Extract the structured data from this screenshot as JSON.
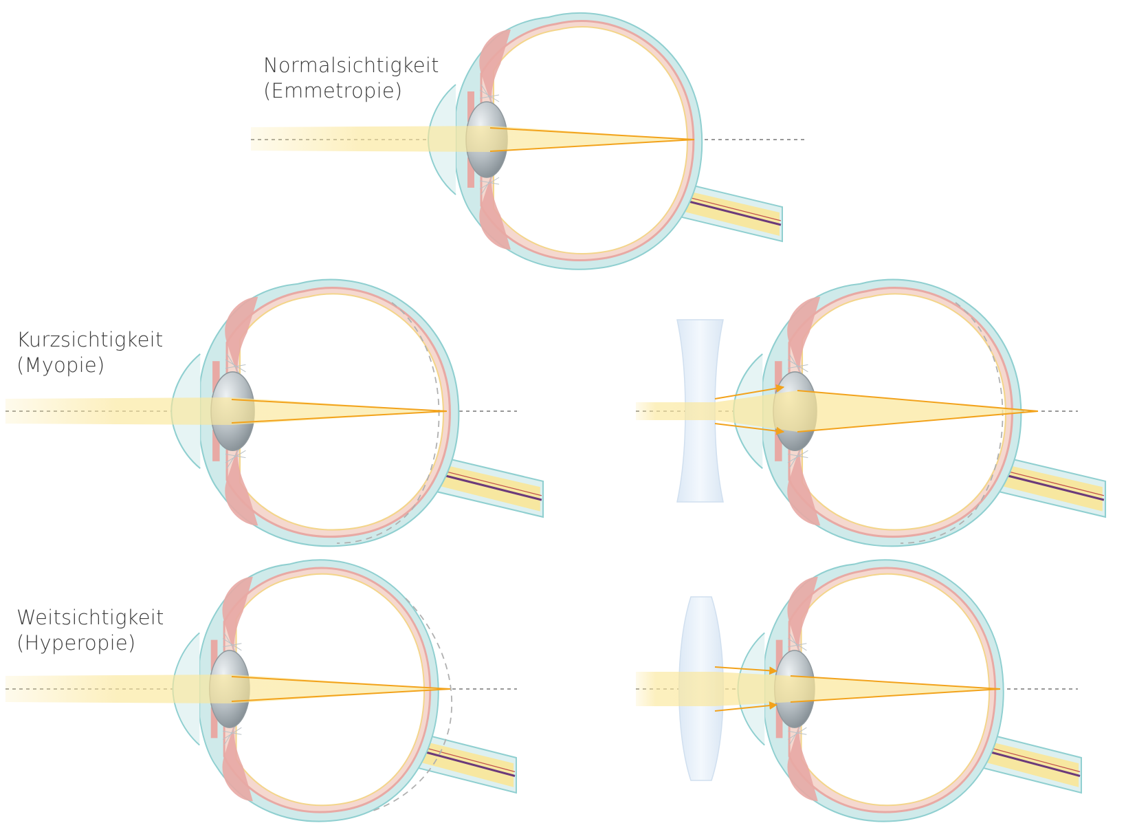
{
  "labels": {
    "normal": {
      "title": "Normalsichtigkeit",
      "subtitle": "(Emmetropie)"
    },
    "myopia": {
      "title": "Kurzsichtigkeit",
      "subtitle": "(Myopie)"
    },
    "hyperopia": {
      "title": "Weitsichtigkeit",
      "subtitle": "(Hyperopie)"
    }
  },
  "colors": {
    "sclera": "#cfeaea",
    "sclera_stroke": "#8fcfd0",
    "choroid": "#e8a9a4",
    "retina": "#f3d58a",
    "lens": "#9aa3a8",
    "lens_highlight": "#e2e7ea",
    "vitreous": "#ffffff",
    "light_beam": "#fbe79a",
    "light_ray": "#f2a21b",
    "optic_nerve": "#f7e7a0",
    "optic_vessel": "#6b3a7a",
    "axis_dash": "#777777",
    "corrective_lens": "#e3eef8",
    "label_text": "#3a3a3a"
  },
  "eyes": [
    {
      "id": "normal",
      "condition": "emmetropia",
      "corrected": false,
      "focus": "on-retina"
    },
    {
      "id": "myopia",
      "condition": "myopia",
      "corrected": false,
      "focus": "in-front-of-retina"
    },
    {
      "id": "myopia-corrected",
      "condition": "myopia",
      "corrected": true,
      "lens": "concave",
      "focus": "on-retina"
    },
    {
      "id": "hyperopia",
      "condition": "hyperopia",
      "corrected": false,
      "focus": "behind-retina"
    },
    {
      "id": "hyperopia-corrected",
      "condition": "hyperopia",
      "corrected": true,
      "lens": "convex",
      "focus": "on-retina"
    }
  ]
}
